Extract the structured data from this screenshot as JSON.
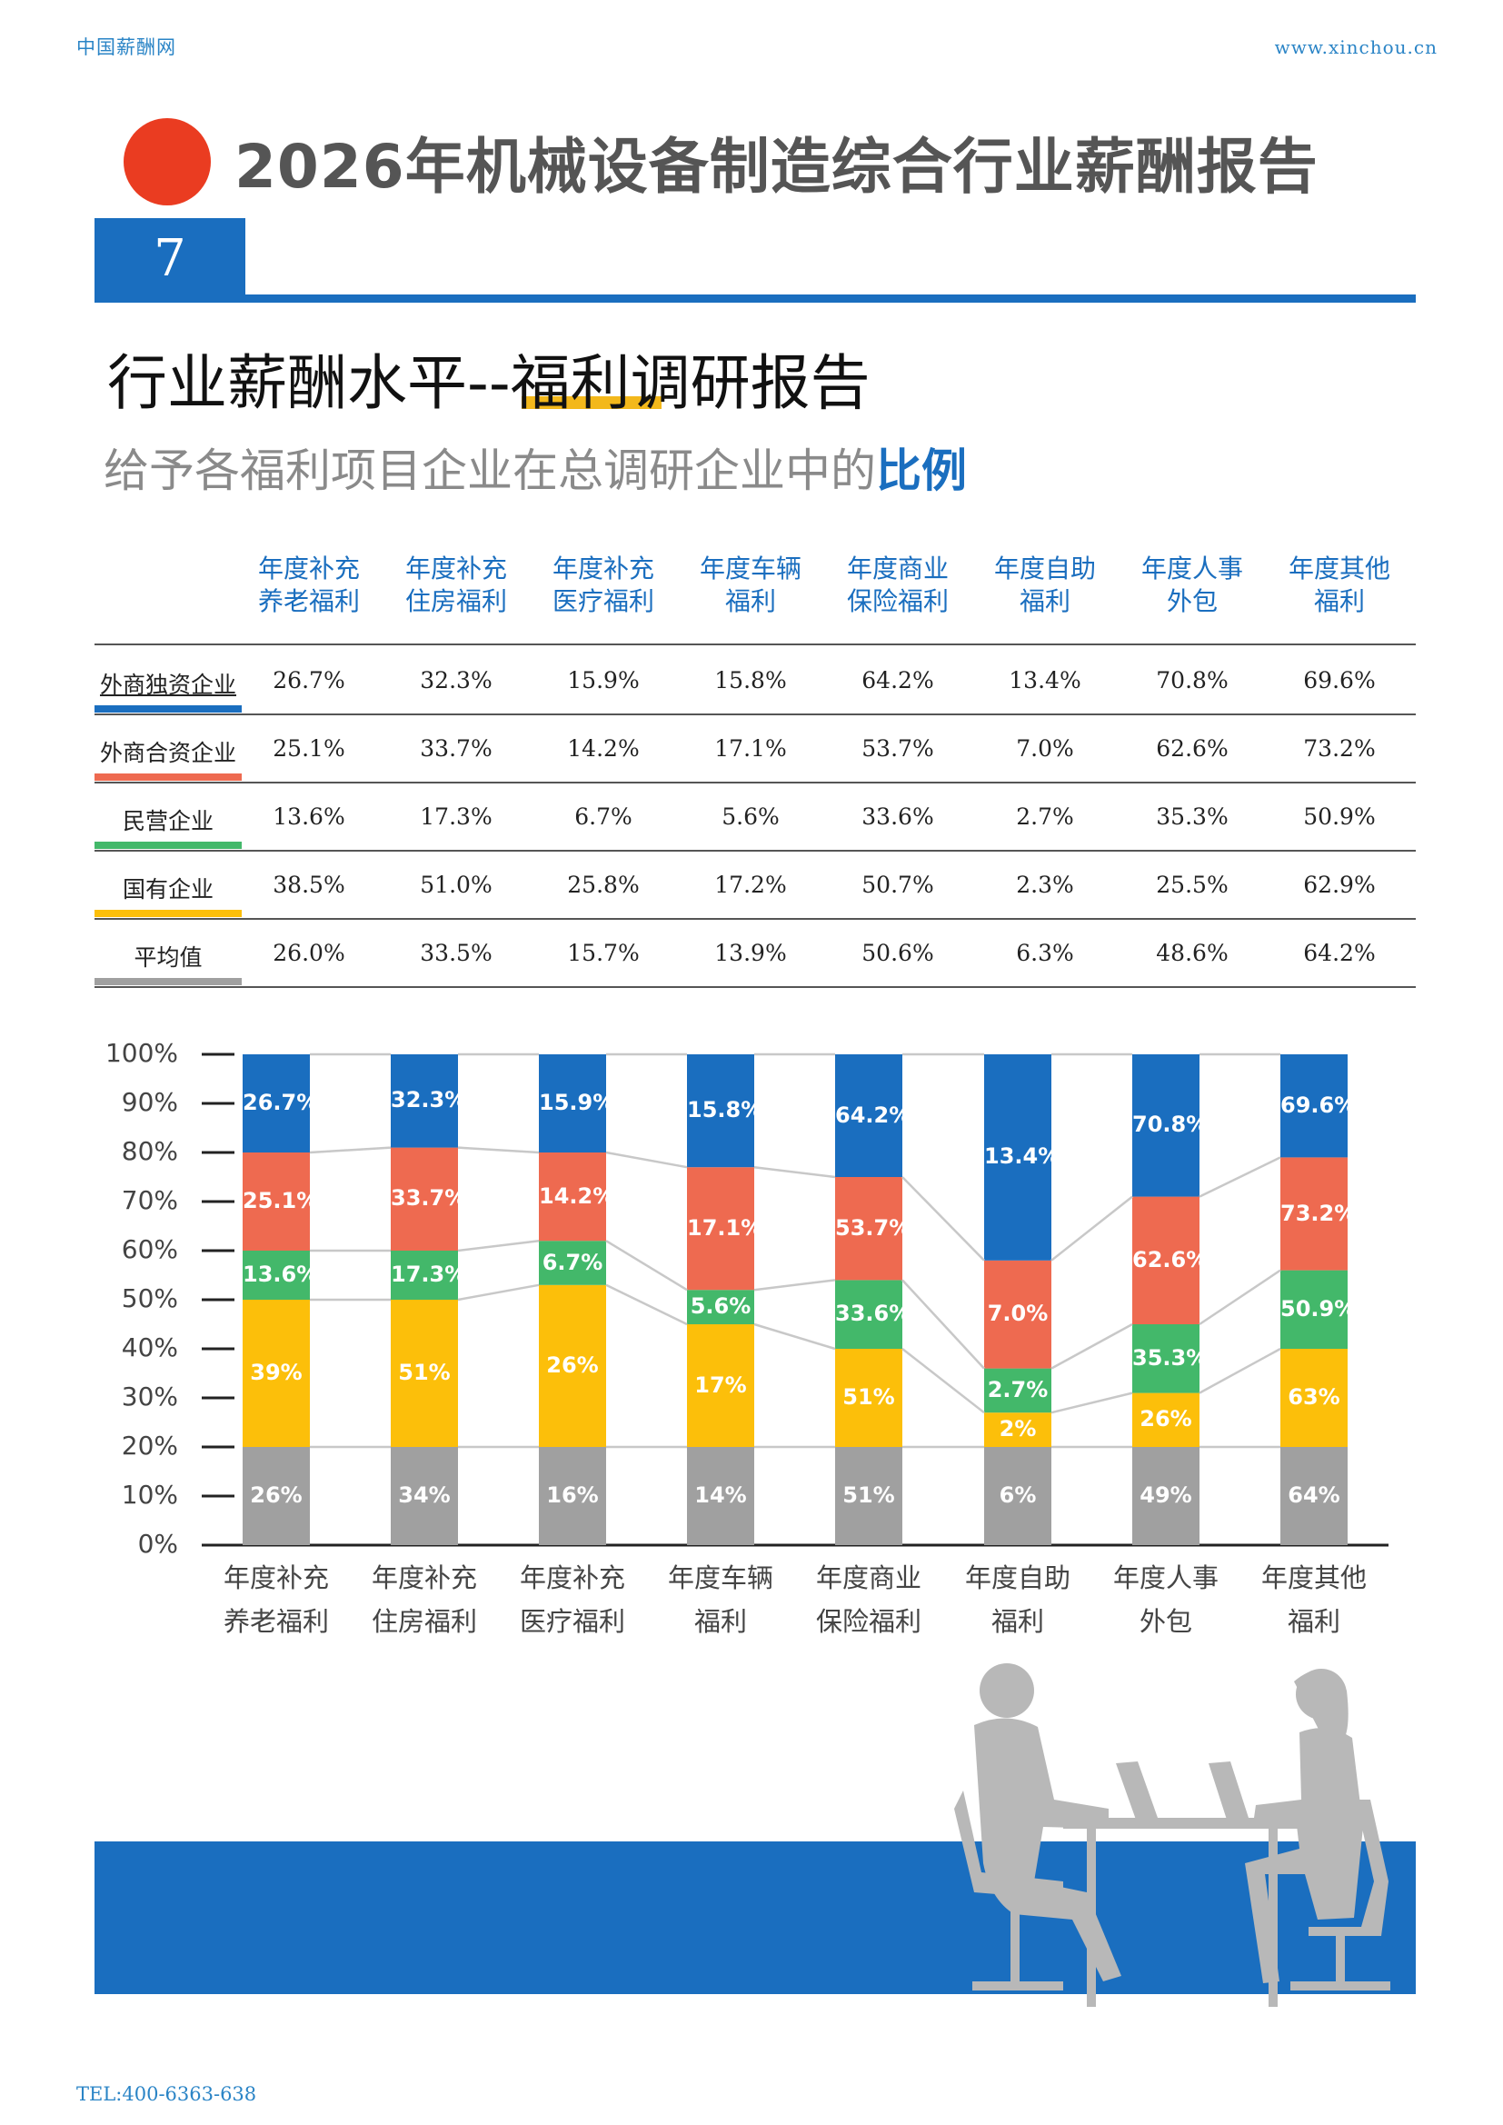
{
  "header": {
    "brand_left": "中国薪酬网",
    "brand_right": "www.xinchou.cn",
    "title": "2026年机械设备制造综合行业薪酬报告",
    "section_number": "7"
  },
  "section": {
    "heading": "行业薪酬水平--福利调研报告",
    "subheading_prefix": "给予各福利项目企业在总调研企业中的",
    "subheading_emph": "比例"
  },
  "table": {
    "columns": [
      [
        "年度补充",
        "养老福利"
      ],
      [
        "年度补充",
        "住房福利"
      ],
      [
        "年度补充",
        "医疗福利"
      ],
      [
        "年度车辆",
        "福利"
      ],
      [
        "年度商业",
        "保险福利"
      ],
      [
        "年度自助",
        "福利"
      ],
      [
        "年度人事",
        "外包"
      ],
      [
        "年度其他",
        "福利"
      ]
    ],
    "rows": [
      {
        "label": "外商独资企业",
        "color": "#1a6ebf",
        "values": [
          "26.7%",
          "32.3%",
          "15.9%",
          "15.8%",
          "64.2%",
          "13.4%",
          "70.8%",
          "69.6%"
        ]
      },
      {
        "label": "外商合资企业",
        "color": "#ee6a50",
        "values": [
          "25.1%",
          "33.7%",
          "14.2%",
          "17.1%",
          "53.7%",
          "7.0%",
          "62.6%",
          "73.2%"
        ]
      },
      {
        "label": "民营企业",
        "color": "#43b86a",
        "values": [
          "13.6%",
          "17.3%",
          "6.7%",
          "5.6%",
          "33.6%",
          "2.7%",
          "35.3%",
          "50.9%"
        ]
      },
      {
        "label": "国有企业",
        "color": "#fcbf0a",
        "values": [
          "38.5%",
          "51.0%",
          "25.8%",
          "17.2%",
          "50.7%",
          "2.3%",
          "25.5%",
          "62.9%"
        ]
      },
      {
        "label": "平均值",
        "color": "#a0a0a0",
        "values": [
          "26.0%",
          "33.5%",
          "15.7%",
          "13.9%",
          "50.6%",
          "6.3%",
          "48.6%",
          "64.2%"
        ]
      }
    ]
  },
  "chart_data": {
    "type": "bar",
    "stacked": true,
    "ylim": [
      0,
      100
    ],
    "yticks": [
      "0%",
      "10%",
      "20%",
      "30%",
      "40%",
      "50%",
      "60%",
      "70%",
      "80%",
      "90%",
      "100%"
    ],
    "categories": [
      [
        "年度补充",
        "养老福利"
      ],
      [
        "年度补充",
        "住房福利"
      ],
      [
        "年度补充",
        "医疗福利"
      ],
      [
        "年度车辆",
        "福利"
      ],
      [
        "年度商业",
        "保险福利"
      ],
      [
        "年度自助",
        "福利"
      ],
      [
        "年度人事",
        "外包"
      ],
      [
        "年度其他",
        "福利"
      ]
    ],
    "series_order_bottom_to_top": [
      "gray",
      "yellow",
      "green",
      "red",
      "blue"
    ],
    "segments": [
      {
        "gray": 20,
        "yellow": 30,
        "green": 10,
        "red": 20,
        "blue": 20
      },
      {
        "gray": 20,
        "yellow": 30,
        "green": 10,
        "red": 21,
        "blue": 19
      },
      {
        "gray": 20,
        "yellow": 33,
        "green": 9,
        "red": 18,
        "blue": 20
      },
      {
        "gray": 20,
        "yellow": 25,
        "green": 7,
        "red": 25,
        "blue": 23
      },
      {
        "gray": 20,
        "yellow": 20,
        "green": 14,
        "red": 21,
        "blue": 25
      },
      {
        "gray": 20,
        "yellow": 7,
        "green": 9,
        "red": 22,
        "blue": 42
      },
      {
        "gray": 20,
        "yellow": 11,
        "green": 14,
        "red": 26,
        "blue": 29
      },
      {
        "gray": 20,
        "yellow": 20,
        "green": 16,
        "red": 23,
        "blue": 21
      }
    ],
    "labels": {
      "gray": [
        "26%",
        "34%",
        "16%",
        "14%",
        "51%",
        "6%",
        "49%",
        "64%"
      ],
      "yellow": [
        "39%",
        "51%",
        "26%",
        "17%",
        "51%",
        "2%",
        "26%",
        "63%"
      ],
      "green": [
        "13.6%",
        "17.3%",
        "6.7%",
        "5.6%",
        "33.6%",
        "2.7%",
        "35.3%",
        "50.9%"
      ],
      "red": [
        "25.1%",
        "33.7%",
        "14.2%",
        "17.1%",
        "53.7%",
        "7.0%",
        "62.6%",
        "73.2%"
      ],
      "blue": [
        "26.7%",
        "32.3%",
        "15.9%",
        "15.8%",
        "64.2%",
        "13.4%",
        "70.8%",
        "69.6%"
      ]
    },
    "colors": {
      "gray": "#a0a0a0",
      "yellow": "#fcbf0a",
      "green": "#43b86a",
      "red": "#ee6a50",
      "blue": "#1a6ebf"
    }
  },
  "footer": {
    "tel": "TEL:400-6363-638"
  }
}
